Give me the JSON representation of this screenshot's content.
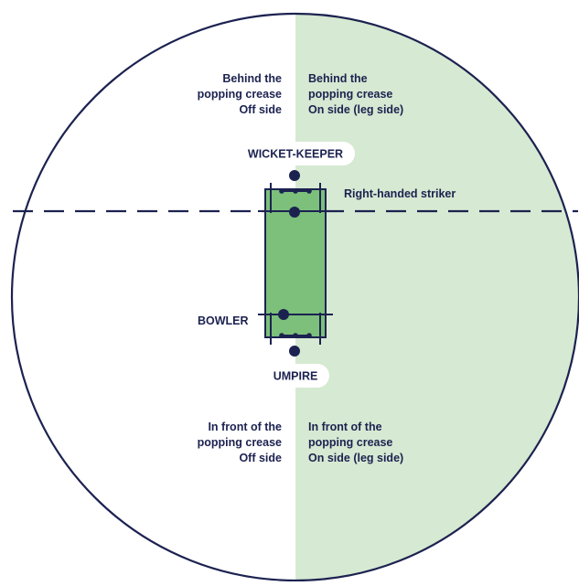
{
  "colors": {
    "background": "#ffffff",
    "on_side_fill": "#d6e9d2",
    "pitch_fill": "#7cc07b",
    "line": "#1c2250",
    "label_pill": "#ffffff"
  },
  "quadrants": {
    "behind_off": [
      "Behind the",
      "popping crease",
      "Off side"
    ],
    "behind_on": [
      "Behind the",
      "popping crease",
      "On side (leg side)"
    ],
    "front_off": [
      "In front of the",
      "popping crease",
      "Off side"
    ],
    "front_on": [
      "In front of the",
      "popping crease",
      "On side (leg side)"
    ]
  },
  "players": {
    "wicket_keeper": "WICKET-KEEPER",
    "striker": "Right-handed striker",
    "bowler": "BOWLER",
    "umpire": "UMPIRE"
  },
  "icons": {
    "player_marker": "filled-dot",
    "stumps": "stumps-with-bails"
  }
}
